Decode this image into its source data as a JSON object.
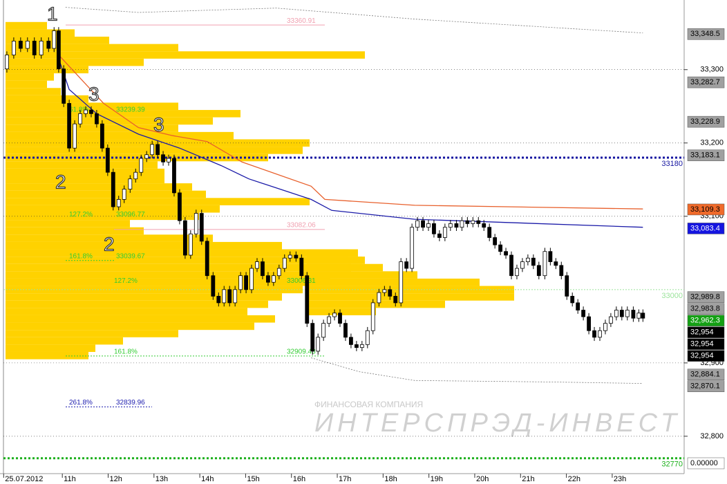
{
  "chart_data": {
    "type": "candlestick",
    "xlim": [
      9.64,
      24.57
    ],
    "ylim": [
      32749,
      33395
    ],
    "xticks": [
      {
        "value": 9.72,
        "label": "25.07.2012"
      },
      {
        "value": 11,
        "label": "11h"
      },
      {
        "value": 12,
        "label": "12h"
      },
      {
        "value": 13,
        "label": "13h"
      },
      {
        "value": 14,
        "label": "14h"
      },
      {
        "value": 15,
        "label": "15h"
      },
      {
        "value": 16,
        "label": "16h"
      },
      {
        "value": 17,
        "label": "17h"
      },
      {
        "value": 18,
        "label": "18h"
      },
      {
        "value": 19,
        "label": "19h"
      },
      {
        "value": 20,
        "label": "20h"
      },
      {
        "value": 21,
        "label": "21h"
      },
      {
        "value": 22,
        "label": "22h"
      },
      {
        "value": 23,
        "label": "23h"
      }
    ],
    "yticks": [
      {
        "value": 33300,
        "label": "33,300"
      },
      {
        "value": 33200,
        "label": "33,200"
      },
      {
        "value": 33100,
        "label": "33,100"
      },
      {
        "value": 32900,
        "label": "32,900"
      },
      {
        "value": 32800,
        "label": "32,800"
      }
    ],
    "grid": true,
    "up_color": "#ffffff",
    "down_color": "#000000",
    "x": [
      9.79,
      9.94,
      10.09,
      10.24,
      10.39,
      10.54,
      10.7,
      10.82,
      10.92,
      11.03,
      11.15,
      11.27,
      11.39,
      11.51,
      11.63,
      11.75,
      11.87,
      11.99,
      12.11,
      12.23,
      12.35,
      12.48,
      12.6,
      12.72,
      12.84,
      12.96,
      13.08,
      13.2,
      13.32,
      13.44,
      13.56,
      13.68,
      13.8,
      13.92,
      14.04,
      14.16,
      14.29,
      14.41,
      14.53,
      14.65,
      14.77,
      14.89,
      15.01,
      15.13,
      15.25,
      15.37,
      15.49,
      15.61,
      15.73,
      15.85,
      15.97,
      16.1,
      16.22,
      16.34,
      16.46,
      16.58,
      16.7,
      16.82,
      16.94,
      17.06,
      17.18,
      17.3,
      17.42,
      17.54,
      17.66,
      17.78,
      17.91,
      18.03,
      18.15,
      18.27,
      18.39,
      18.51,
      18.63,
      18.75,
      18.87,
      18.99,
      19.11,
      19.23,
      19.35,
      19.47,
      19.6,
      19.72,
      19.84,
      19.96,
      20.08,
      20.2,
      20.32,
      20.44,
      20.56,
      20.68,
      20.8,
      20.92,
      21.04,
      21.16,
      21.28,
      21.4,
      21.53,
      21.65,
      21.77,
      21.89,
      22.01,
      22.13,
      22.25,
      22.37,
      22.49,
      22.61,
      22.73,
      22.85,
      22.97,
      23.09,
      23.21,
      23.33,
      23.46,
      23.58,
      23.67
    ],
    "open": [
      33301,
      33320,
      33339,
      33329,
      33339,
      33320,
      33339,
      33329,
      33353,
      33301,
      33254,
      33193,
      33226,
      33240,
      33245,
      33240,
      33226,
      33193,
      33160,
      33113,
      33123,
      33137,
      33151,
      33160,
      33179,
      33184,
      33198,
      33184,
      33174,
      33179,
      33132,
      33094,
      33047,
      33076,
      33104,
      33066,
      33019,
      32991,
      32982,
      33000,
      32982,
      33000,
      33019,
      33000,
      33029,
      33038,
      33019,
      33010,
      33019,
      33029,
      33043,
      33047,
      33043,
      33019,
      32954,
      32916,
      32935,
      32954,
      32963,
      32968,
      32954,
      32935,
      32925,
      32921,
      32925,
      32944,
      32982,
      32996,
      33000,
      32991,
      32982,
      33038,
      33029,
      33085,
      33094,
      33085,
      33090,
      33076,
      33071,
      33085,
      33090,
      33085,
      33094,
      33090,
      33094,
      33090,
      33085,
      33071,
      33061,
      33052,
      33047,
      33019,
      33029,
      33038,
      33043,
      33033,
      33019,
      33052,
      33038,
      33033,
      33019,
      32991,
      32982,
      32972,
      32963,
      32944,
      32935,
      32944,
      32954,
      32963,
      32972,
      32963,
      32972,
      32961,
      32968
    ],
    "high": [
      33325,
      33344,
      33344,
      33344,
      33344,
      33344,
      33344,
      33358,
      33358,
      33306,
      33259,
      33231,
      33245,
      33250,
      33250,
      33245,
      33231,
      33198,
      33165,
      33128,
      33142,
      33156,
      33165,
      33184,
      33189,
      33203,
      33203,
      33189,
      33184,
      33184,
      33137,
      33099,
      33081,
      33109,
      33109,
      33071,
      33024,
      32996,
      33005,
      33005,
      33005,
      33024,
      33024,
      33034,
      33043,
      33043,
      33024,
      33024,
      33034,
      33048,
      33052,
      33052,
      33048,
      33024,
      32959,
      32940,
      32959,
      32968,
      32973,
      32973,
      32959,
      32940,
      32930,
      32930,
      32949,
      32987,
      33001,
      33005,
      33005,
      32996,
      33043,
      33043,
      33090,
      33099,
      33099,
      33095,
      33095,
      33081,
      33090,
      33095,
      33095,
      33099,
      33099,
      33099,
      33099,
      33095,
      33090,
      33076,
      33066,
      33057,
      33052,
      33034,
      33043,
      33048,
      33048,
      33038,
      33057,
      33057,
      33043,
      33038,
      33024,
      32996,
      32987,
      32977,
      32968,
      32949,
      32949,
      32959,
      32968,
      32977,
      32977,
      32977,
      32977,
      32973,
      32973
    ],
    "low": [
      33296,
      33315,
      33324,
      33324,
      33315,
      33315,
      33324,
      33324,
      33296,
      33249,
      33188,
      33188,
      33221,
      33235,
      33235,
      33221,
      33188,
      33155,
      33108,
      33108,
      33118,
      33132,
      33146,
      33155,
      33174,
      33179,
      33179,
      33169,
      33169,
      33127,
      33089,
      33042,
      33042,
      33071,
      33061,
      33014,
      32986,
      32977,
      32977,
      32977,
      32977,
      32995,
      32995,
      32995,
      33024,
      33014,
      33005,
      33005,
      33014,
      33024,
      33038,
      33038,
      33014,
      32949,
      32911,
      32911,
      32930,
      32949,
      32958,
      32949,
      32930,
      32920,
      32916,
      32916,
      32920,
      32939,
      32977,
      32991,
      32986,
      32977,
      32977,
      33024,
      33024,
      33080,
      33080,
      33080,
      33071,
      33066,
      33066,
      33080,
      33080,
      33080,
      33085,
      33085,
      33085,
      33080,
      33066,
      33056,
      33047,
      33042,
      33014,
      33014,
      33024,
      33033,
      33028,
      33014,
      33014,
      33033,
      33028,
      33014,
      32986,
      32977,
      32967,
      32958,
      32939,
      32930,
      32930,
      32939,
      32949,
      32958,
      32958,
      32958,
      32956,
      32956,
      32956
    ],
    "close": [
      33320,
      33339,
      33329,
      33339,
      33320,
      33339,
      33329,
      33353,
      33301,
      33254,
      33193,
      33226,
      33240,
      33245,
      33240,
      33226,
      33193,
      33160,
      33113,
      33123,
      33137,
      33151,
      33160,
      33179,
      33184,
      33198,
      33184,
      33174,
      33179,
      33132,
      33094,
      33047,
      33076,
      33104,
      33066,
      33019,
      32991,
      32982,
      33000,
      32982,
      33000,
      33019,
      33000,
      33029,
      33038,
      33019,
      33010,
      33019,
      33029,
      33043,
      33047,
      33043,
      33019,
      32954,
      32916,
      32935,
      32954,
      32963,
      32968,
      32954,
      32935,
      32925,
      32921,
      32925,
      32944,
      32982,
      32996,
      33000,
      32991,
      32982,
      33038,
      33029,
      33085,
      33094,
      33085,
      33090,
      33076,
      33071,
      33085,
      33090,
      33085,
      33094,
      33090,
      33094,
      33090,
      33085,
      33071,
      33061,
      33052,
      33047,
      33019,
      33029,
      33038,
      33043,
      33033,
      33019,
      33052,
      33038,
      33033,
      33019,
      32991,
      32982,
      32972,
      32963,
      32944,
      32935,
      32944,
      32954,
      32963,
      32972,
      32963,
      32972,
      32961,
      32968,
      32961
    ],
    "lines": [
      {
        "color": "#e8602c",
        "dashed": false,
        "x": [
          10.92,
          11.9,
          12.66,
          13.41,
          14.16,
          14.92,
          16.43,
          16.73,
          18.69,
          23.67
        ],
        "values": [
          33320,
          33254,
          33221,
          33210,
          33202,
          33174,
          33141,
          33123,
          33115,
          33110
        ]
      },
      {
        "color": "#1a1aa8",
        "dashed": false,
        "x": [
          10.92,
          11.15,
          11.75,
          12.66,
          13.56,
          14.47,
          15.07,
          16.43,
          16.88,
          18.69,
          23.67
        ],
        "values": [
          33315,
          33273,
          33240,
          33212,
          33193,
          33169,
          33151,
          33123,
          33108,
          33096,
          33085
        ]
      },
      {
        "color": "#777777",
        "dashed": true,
        "x": [
          11.07,
          12.66,
          14.16,
          15.67,
          18.69,
          23.67
        ],
        "values": [
          33385,
          33378,
          33381,
          33384,
          33369,
          33350
        ]
      },
      {
        "color": "#777777",
        "dashed": true,
        "x": [
          16.43,
          17.48,
          18.69,
          21.71,
          23.67
        ],
        "values": [
          32907,
          32888,
          32876,
          32874,
          32872
        ]
      }
    ],
    "volume_profiles": [
      {
        "color": "#ffd200",
        "prices": [
          33360,
          33350,
          33340,
          33330,
          33320,
          33310,
          33300,
          33290,
          33280,
          33270,
          33260,
          33250,
          33240,
          33230,
          33220,
          33210,
          33200,
          33190,
          33180,
          33170,
          33160,
          33150,
          33140,
          33130,
          33120,
          33110,
          33100,
          33090,
          33080,
          33070,
          33060,
          33050,
          33040,
          33030,
          33020,
          33010,
          33000,
          32990,
          32980,
          32970,
          32960,
          32950,
          32940,
          32930,
          32920,
          32910
        ],
        "volumes": [
          60,
          100,
          150,
          250,
          520,
          200,
          120,
          70,
          60,
          80,
          120,
          250,
          340,
          300,
          250,
          330,
          440,
          430,
          380,
          220,
          230,
          230,
          270,
          290,
          440,
          310,
          280,
          180,
          200,
          300,
          400,
          510,
          520,
          500,
          470,
          480,
          430,
          400,
          380,
          350,
          390,
          360,
          250,
          170,
          130,
          120
        ]
      },
      {
        "color": "#ffd200",
        "prices": [
          33050,
          33040,
          33030,
          33020,
          33010,
          33000,
          32990,
          32980,
          32970
        ],
        "volumes": [
          60,
          80,
          110,
          160,
          250,
          300,
          300,
          200,
          100
        ]
      }
    ],
    "levels": [
      {
        "value": 33180,
        "color": "#1414a0"
      },
      {
        "value": 33000,
        "color": "#9be39b"
      },
      {
        "value": 32770,
        "color": "#1cb01c"
      }
    ],
    "fib_levels": [
      {
        "price": 33360.91,
        "color": "#f0a0b0"
      },
      {
        "ratio": "61.8%",
        "price": 33239.39,
        "color": "#33cc33"
      },
      {
        "ratio": "127.2%",
        "price": 33096.77,
        "color": "#33cc33"
      },
      {
        "price": 33082.06,
        "color": "#f0a0b0"
      },
      {
        "ratio": "161.8%",
        "price": 33039.67,
        "color": "#33cc33"
      },
      {
        "ratio": "127.2%",
        "price": 33006.31,
        "color": "#33cc33"
      },
      {
        "ratio": "161.8%",
        "price": 32909.43,
        "color": "#33cc33"
      },
      {
        "ratio": "261.8%",
        "price": 32839.96,
        "color": "#2020b0"
      }
    ],
    "price_markers": [
      {
        "value": 33348.5,
        "label": "33,348.5",
        "color": "#a0a0a0",
        "text_color": "#000000"
      },
      {
        "value": 33282.7,
        "label": "33,282.7",
        "color": "#a0a0a0",
        "text_color": "#000000"
      },
      {
        "value": 33228.9,
        "label": "33,228.9",
        "color": "#a0a0a0",
        "text_color": "#000000"
      },
      {
        "value": 33183.1,
        "label": "33,183.1",
        "color": "#a0a0a0",
        "text_color": "#000000"
      },
      {
        "value": 33109.3,
        "label": "33,109.3",
        "color": "#f06a2a",
        "text_color": "#000000"
      },
      {
        "value": 33083.4,
        "label": "33,083.4",
        "color": "#1515e0",
        "text_color": "#ffffff"
      },
      {
        "value": 32989.8,
        "label": "32,989.8",
        "color": "#a0a0a0",
        "text_color": "#000000"
      },
      {
        "value": 32983.8,
        "label": "32,983.8",
        "color": "#a0a0a0",
        "text_color": "#000000"
      },
      {
        "value": 32962.3,
        "label": "32,962.3",
        "color": "#14a014",
        "text_color": "#ffffff"
      },
      {
        "value": 32954,
        "label": "32,954",
        "color": "#000000",
        "text_color": "#ffffff"
      },
      {
        "value": 32954,
        "label": "32,954",
        "color": "#000000",
        "text_color": "#ffffff"
      },
      {
        "value": 32954,
        "label": "32,954",
        "color": "#000000",
        "text_color": "#ffffff"
      },
      {
        "value": 32884.1,
        "label": "32,884.1",
        "color": "#a0a0a0",
        "text_color": "#000000"
      },
      {
        "value": 32870.1,
        "label": "32,870.1",
        "color": "#a0a0a0",
        "text_color": "#000000"
      }
    ],
    "bottom_marker": "0.00000",
    "annotations": [
      "1",
      "2",
      "3",
      "2",
      "3"
    ],
    "watermark": [
      "ФИНАНСОВАЯ КОМПАНИЯ",
      "ИНТЕРСПРЭД-ИНВЕСТ"
    ]
  }
}
